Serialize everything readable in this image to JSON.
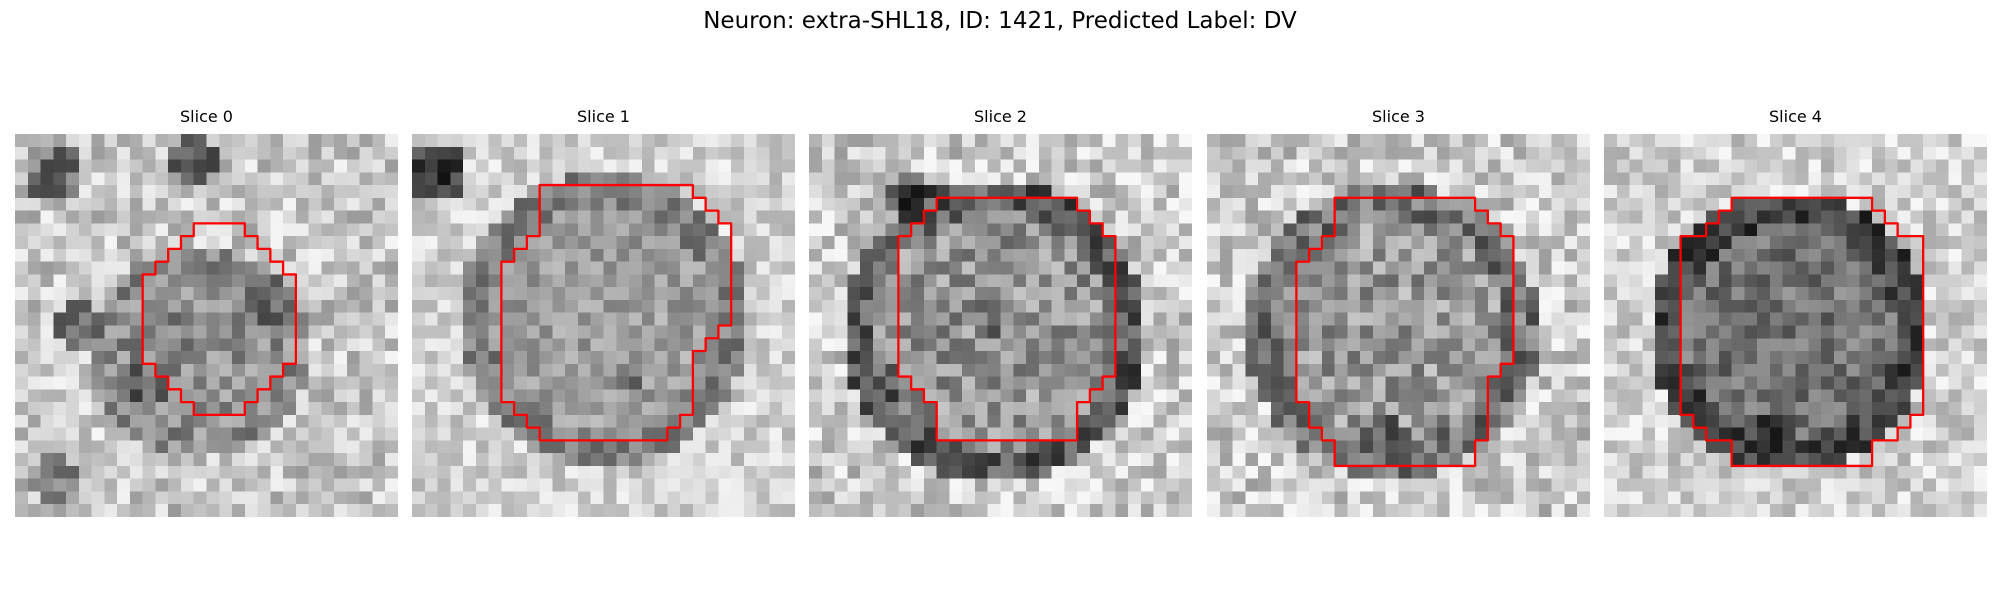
{
  "figure": {
    "title": "Neuron: extra-SHL18, ID: 1421, Predicted Label: DV",
    "neuron_name": "extra-SHL18",
    "neuron_id": 1421,
    "predicted_label": "DV"
  },
  "colors": {
    "background": "#ffffff",
    "contour": "#ff0000",
    "colormap": "grayscale"
  },
  "panels": [
    {
      "title": "Slice 0",
      "slice_index": 0
    },
    {
      "title": "Slice 1",
      "slice_index": 1
    },
    {
      "title": "Slice 2",
      "slice_index": 2
    },
    {
      "title": "Slice 3",
      "slice_index": 3
    },
    {
      "title": "Slice 4",
      "slice_index": 4
    }
  ]
}
